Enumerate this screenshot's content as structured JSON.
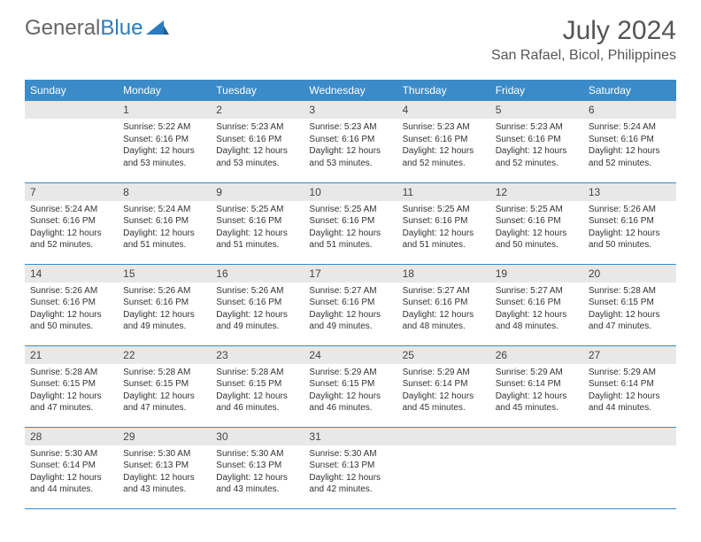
{
  "header": {
    "logo_part1": "General",
    "logo_part2": "Blue",
    "month_title": "July 2024",
    "location": "San Rafael, Bicol, Philippines"
  },
  "styling": {
    "header_bg": "#3b8bc9",
    "header_text": "#ffffff",
    "daynum_bg": "#e8e8e8",
    "border_color": "#3b8bc9",
    "body_text": "#333333",
    "logo_gray": "#666666",
    "logo_blue": "#2a7bbf",
    "title_color": "#555555",
    "font_family": "Arial",
    "dow_fontsize": 12,
    "daynum_fontsize": 12,
    "body_fontsize": 10,
    "month_fontsize": 30,
    "location_fontsize": 16
  },
  "days_of_week": [
    "Sunday",
    "Monday",
    "Tuesday",
    "Wednesday",
    "Thursday",
    "Friday",
    "Saturday"
  ],
  "weeks": [
    [
      null,
      {
        "n": "1",
        "sunrise": "Sunrise: 5:22 AM",
        "sunset": "Sunset: 6:16 PM",
        "day1": "Daylight: 12 hours",
        "day2": "and 53 minutes."
      },
      {
        "n": "2",
        "sunrise": "Sunrise: 5:23 AM",
        "sunset": "Sunset: 6:16 PM",
        "day1": "Daylight: 12 hours",
        "day2": "and 53 minutes."
      },
      {
        "n": "3",
        "sunrise": "Sunrise: 5:23 AM",
        "sunset": "Sunset: 6:16 PM",
        "day1": "Daylight: 12 hours",
        "day2": "and 53 minutes."
      },
      {
        "n": "4",
        "sunrise": "Sunrise: 5:23 AM",
        "sunset": "Sunset: 6:16 PM",
        "day1": "Daylight: 12 hours",
        "day2": "and 52 minutes."
      },
      {
        "n": "5",
        "sunrise": "Sunrise: 5:23 AM",
        "sunset": "Sunset: 6:16 PM",
        "day1": "Daylight: 12 hours",
        "day2": "and 52 minutes."
      },
      {
        "n": "6",
        "sunrise": "Sunrise: 5:24 AM",
        "sunset": "Sunset: 6:16 PM",
        "day1": "Daylight: 12 hours",
        "day2": "and 52 minutes."
      }
    ],
    [
      {
        "n": "7",
        "sunrise": "Sunrise: 5:24 AM",
        "sunset": "Sunset: 6:16 PM",
        "day1": "Daylight: 12 hours",
        "day2": "and 52 minutes."
      },
      {
        "n": "8",
        "sunrise": "Sunrise: 5:24 AM",
        "sunset": "Sunset: 6:16 PM",
        "day1": "Daylight: 12 hours",
        "day2": "and 51 minutes."
      },
      {
        "n": "9",
        "sunrise": "Sunrise: 5:25 AM",
        "sunset": "Sunset: 6:16 PM",
        "day1": "Daylight: 12 hours",
        "day2": "and 51 minutes."
      },
      {
        "n": "10",
        "sunrise": "Sunrise: 5:25 AM",
        "sunset": "Sunset: 6:16 PM",
        "day1": "Daylight: 12 hours",
        "day2": "and 51 minutes."
      },
      {
        "n": "11",
        "sunrise": "Sunrise: 5:25 AM",
        "sunset": "Sunset: 6:16 PM",
        "day1": "Daylight: 12 hours",
        "day2": "and 51 minutes."
      },
      {
        "n": "12",
        "sunrise": "Sunrise: 5:25 AM",
        "sunset": "Sunset: 6:16 PM",
        "day1": "Daylight: 12 hours",
        "day2": "and 50 minutes."
      },
      {
        "n": "13",
        "sunrise": "Sunrise: 5:26 AM",
        "sunset": "Sunset: 6:16 PM",
        "day1": "Daylight: 12 hours",
        "day2": "and 50 minutes."
      }
    ],
    [
      {
        "n": "14",
        "sunrise": "Sunrise: 5:26 AM",
        "sunset": "Sunset: 6:16 PM",
        "day1": "Daylight: 12 hours",
        "day2": "and 50 minutes."
      },
      {
        "n": "15",
        "sunrise": "Sunrise: 5:26 AM",
        "sunset": "Sunset: 6:16 PM",
        "day1": "Daylight: 12 hours",
        "day2": "and 49 minutes."
      },
      {
        "n": "16",
        "sunrise": "Sunrise: 5:26 AM",
        "sunset": "Sunset: 6:16 PM",
        "day1": "Daylight: 12 hours",
        "day2": "and 49 minutes."
      },
      {
        "n": "17",
        "sunrise": "Sunrise: 5:27 AM",
        "sunset": "Sunset: 6:16 PM",
        "day1": "Daylight: 12 hours",
        "day2": "and 49 minutes."
      },
      {
        "n": "18",
        "sunrise": "Sunrise: 5:27 AM",
        "sunset": "Sunset: 6:16 PM",
        "day1": "Daylight: 12 hours",
        "day2": "and 48 minutes."
      },
      {
        "n": "19",
        "sunrise": "Sunrise: 5:27 AM",
        "sunset": "Sunset: 6:16 PM",
        "day1": "Daylight: 12 hours",
        "day2": "and 48 minutes."
      },
      {
        "n": "20",
        "sunrise": "Sunrise: 5:28 AM",
        "sunset": "Sunset: 6:15 PM",
        "day1": "Daylight: 12 hours",
        "day2": "and 47 minutes."
      }
    ],
    [
      {
        "n": "21",
        "sunrise": "Sunrise: 5:28 AM",
        "sunset": "Sunset: 6:15 PM",
        "day1": "Daylight: 12 hours",
        "day2": "and 47 minutes."
      },
      {
        "n": "22",
        "sunrise": "Sunrise: 5:28 AM",
        "sunset": "Sunset: 6:15 PM",
        "day1": "Daylight: 12 hours",
        "day2": "and 47 minutes."
      },
      {
        "n": "23",
        "sunrise": "Sunrise: 5:28 AM",
        "sunset": "Sunset: 6:15 PM",
        "day1": "Daylight: 12 hours",
        "day2": "and 46 minutes."
      },
      {
        "n": "24",
        "sunrise": "Sunrise: 5:29 AM",
        "sunset": "Sunset: 6:15 PM",
        "day1": "Daylight: 12 hours",
        "day2": "and 46 minutes."
      },
      {
        "n": "25",
        "sunrise": "Sunrise: 5:29 AM",
        "sunset": "Sunset: 6:14 PM",
        "day1": "Daylight: 12 hours",
        "day2": "and 45 minutes."
      },
      {
        "n": "26",
        "sunrise": "Sunrise: 5:29 AM",
        "sunset": "Sunset: 6:14 PM",
        "day1": "Daylight: 12 hours",
        "day2": "and 45 minutes."
      },
      {
        "n": "27",
        "sunrise": "Sunrise: 5:29 AM",
        "sunset": "Sunset: 6:14 PM",
        "day1": "Daylight: 12 hours",
        "day2": "and 44 minutes."
      }
    ],
    [
      {
        "n": "28",
        "sunrise": "Sunrise: 5:30 AM",
        "sunset": "Sunset: 6:14 PM",
        "day1": "Daylight: 12 hours",
        "day2": "and 44 minutes."
      },
      {
        "n": "29",
        "sunrise": "Sunrise: 5:30 AM",
        "sunset": "Sunset: 6:13 PM",
        "day1": "Daylight: 12 hours",
        "day2": "and 43 minutes."
      },
      {
        "n": "30",
        "sunrise": "Sunrise: 5:30 AM",
        "sunset": "Sunset: 6:13 PM",
        "day1": "Daylight: 12 hours",
        "day2": "and 43 minutes."
      },
      {
        "n": "31",
        "sunrise": "Sunrise: 5:30 AM",
        "sunset": "Sunset: 6:13 PM",
        "day1": "Daylight: 12 hours",
        "day2": "and 42 minutes."
      },
      null,
      null,
      null
    ]
  ]
}
